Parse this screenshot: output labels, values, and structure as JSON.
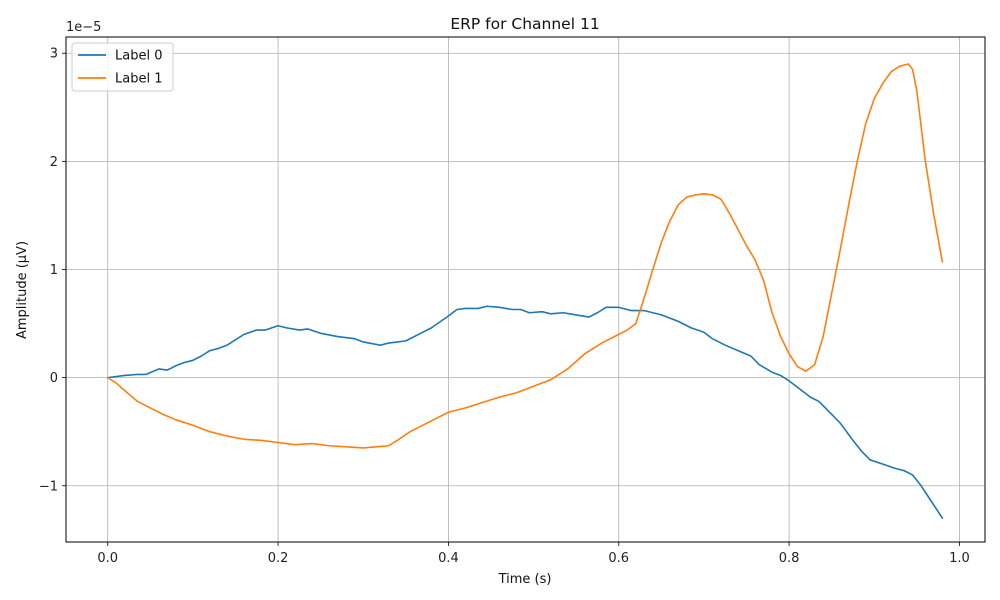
{
  "chart_data": {
    "type": "line",
    "title": "ERP for Channel 11",
    "xlabel": "Time (s)",
    "ylabel": "Amplitude (µV)",
    "y_offset_label": "1e−5",
    "xlim": [
      -0.049,
      1.03
    ],
    "ylim": [
      -1.52,
      3.15
    ],
    "x_ticks": [
      0.0,
      0.2,
      0.4,
      0.6,
      0.8,
      1.0
    ],
    "x_tick_labels": [
      "0.0",
      "0.2",
      "0.4",
      "0.6",
      "0.8",
      "1.0"
    ],
    "y_ticks": [
      -1,
      0,
      1,
      2,
      3
    ],
    "y_tick_labels": [
      "−1",
      "0",
      "1",
      "2",
      "3"
    ],
    "grid": true,
    "legend_position": "top-left",
    "series": [
      {
        "name": "Label 0",
        "color": "#1f77b4",
        "x": [
          0.0,
          0.02,
          0.035,
          0.045,
          0.06,
          0.07,
          0.08,
          0.09,
          0.1,
          0.11,
          0.12,
          0.13,
          0.14,
          0.15,
          0.16,
          0.175,
          0.185,
          0.2,
          0.21,
          0.225,
          0.235,
          0.25,
          0.27,
          0.29,
          0.3,
          0.32,
          0.33,
          0.35,
          0.37,
          0.38,
          0.4,
          0.41,
          0.42,
          0.435,
          0.445,
          0.46,
          0.475,
          0.485,
          0.495,
          0.51,
          0.52,
          0.535,
          0.55,
          0.565,
          0.575,
          0.585,
          0.6,
          0.615,
          0.63,
          0.65,
          0.67,
          0.685,
          0.7,
          0.71,
          0.725,
          0.74,
          0.755,
          0.765,
          0.78,
          0.79,
          0.8,
          0.81,
          0.825,
          0.835,
          0.845,
          0.86,
          0.875,
          0.885,
          0.895,
          0.91,
          0.925,
          0.935,
          0.945,
          0.955,
          0.965,
          0.98
        ],
        "y": [
          0.0,
          0.02,
          0.03,
          0.03,
          0.08,
          0.07,
          0.11,
          0.14,
          0.16,
          0.2,
          0.25,
          0.27,
          0.3,
          0.35,
          0.4,
          0.44,
          0.44,
          0.48,
          0.46,
          0.44,
          0.45,
          0.41,
          0.38,
          0.36,
          0.33,
          0.3,
          0.32,
          0.34,
          0.42,
          0.46,
          0.57,
          0.63,
          0.64,
          0.64,
          0.66,
          0.65,
          0.63,
          0.63,
          0.6,
          0.61,
          0.59,
          0.6,
          0.58,
          0.56,
          0.6,
          0.65,
          0.65,
          0.62,
          0.62,
          0.58,
          0.52,
          0.46,
          0.42,
          0.36,
          0.3,
          0.25,
          0.2,
          0.12,
          0.05,
          0.02,
          -0.03,
          -0.09,
          -0.18,
          -0.22,
          -0.3,
          -0.42,
          -0.58,
          -0.68,
          -0.76,
          -0.8,
          -0.84,
          -0.86,
          -0.9,
          -1.0,
          -1.12,
          -1.3
        ]
      },
      {
        "name": "Label 1",
        "color": "#ff7f0e",
        "x": [
          0.0,
          0.01,
          0.02,
          0.035,
          0.05,
          0.065,
          0.08,
          0.1,
          0.12,
          0.14,
          0.16,
          0.18,
          0.2,
          0.22,
          0.24,
          0.26,
          0.28,
          0.3,
          0.315,
          0.33,
          0.34,
          0.355,
          0.37,
          0.39,
          0.4,
          0.42,
          0.44,
          0.46,
          0.48,
          0.5,
          0.52,
          0.54,
          0.56,
          0.58,
          0.6,
          0.61,
          0.62,
          0.63,
          0.64,
          0.65,
          0.66,
          0.67,
          0.68,
          0.69,
          0.7,
          0.71,
          0.72,
          0.73,
          0.74,
          0.75,
          0.76,
          0.77,
          0.78,
          0.79,
          0.8,
          0.81,
          0.82,
          0.83,
          0.84,
          0.85,
          0.86,
          0.87,
          0.88,
          0.89,
          0.9,
          0.91,
          0.92,
          0.93,
          0.94,
          0.945,
          0.95,
          0.96,
          0.97,
          0.98
        ],
        "y": [
          0.0,
          -0.05,
          -0.12,
          -0.22,
          -0.28,
          -0.34,
          -0.39,
          -0.44,
          -0.5,
          -0.54,
          -0.57,
          -0.58,
          -0.6,
          -0.62,
          -0.61,
          -0.63,
          -0.64,
          -0.65,
          -0.64,
          -0.63,
          -0.58,
          -0.5,
          -0.44,
          -0.36,
          -0.32,
          -0.28,
          -0.23,
          -0.18,
          -0.14,
          -0.08,
          -0.02,
          0.08,
          0.22,
          0.32,
          0.4,
          0.44,
          0.5,
          0.74,
          1.0,
          1.25,
          1.45,
          1.6,
          1.67,
          1.69,
          1.7,
          1.69,
          1.65,
          1.52,
          1.37,
          1.22,
          1.09,
          0.9,
          0.6,
          0.38,
          0.22,
          0.1,
          0.06,
          0.12,
          0.38,
          0.78,
          1.18,
          1.6,
          2.0,
          2.35,
          2.58,
          2.72,
          2.83,
          2.88,
          2.9,
          2.85,
          2.65,
          2.0,
          1.5,
          1.07
        ]
      }
    ]
  }
}
